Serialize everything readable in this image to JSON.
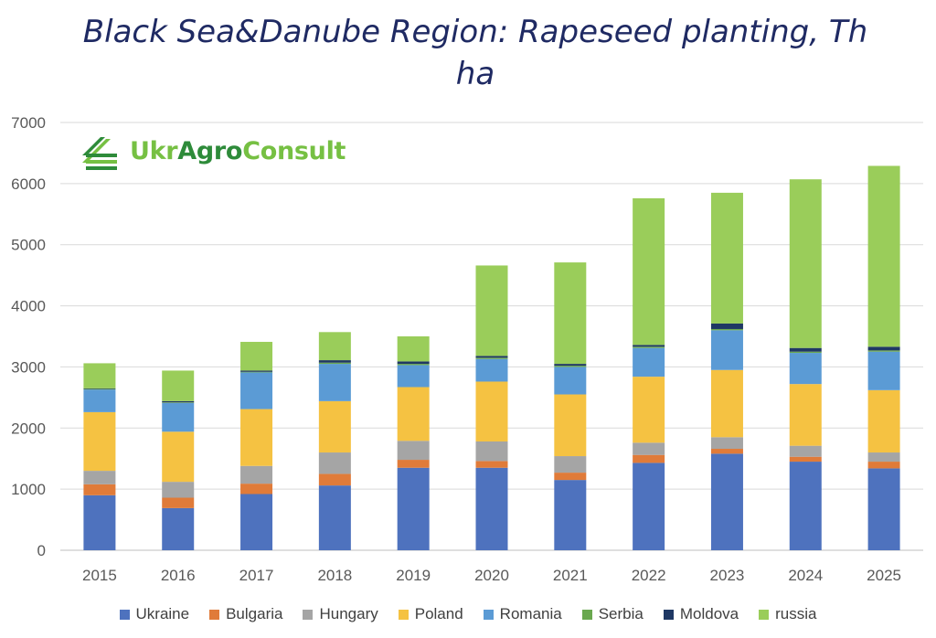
{
  "title": "Black Sea&Danube Region: Rapeseed planting, Th ha",
  "logo": {
    "part1": "Ukr",
    "part2": "Agro",
    "part3": "Consult"
  },
  "colors": {
    "Ukraine": "#4e72be",
    "Bulgaria": "#e07b39",
    "Hungary": "#a5a5a5",
    "Poland": "#f5c242",
    "Romania": "#5b9bd5",
    "Serbia": "#6aa84f",
    "Moldova": "#1f3864",
    "russia": "#9acd5a"
  },
  "chart_data": {
    "type": "bar",
    "stacked": true,
    "categories": [
      "2015",
      "2016",
      "2017",
      "2018",
      "2019",
      "2020",
      "2021",
      "2022",
      "2023",
      "2024",
      "2025"
    ],
    "ylim": [
      0,
      7000
    ],
    "yticks": [
      0,
      1000,
      2000,
      3000,
      4000,
      5000,
      6000,
      7000
    ],
    "grid": true,
    "legend_position": "bottom",
    "series": [
      {
        "name": "Ukraine",
        "values": [
          900,
          690,
          920,
          1060,
          1350,
          1350,
          1150,
          1430,
          1580,
          1450,
          1340
        ]
      },
      {
        "name": "Bulgaria",
        "values": [
          180,
          170,
          170,
          190,
          130,
          110,
          120,
          130,
          80,
          80,
          110
        ]
      },
      {
        "name": "Hungary",
        "values": [
          220,
          260,
          290,
          350,
          310,
          320,
          270,
          200,
          190,
          180,
          150
        ]
      },
      {
        "name": "Poland",
        "values": [
          960,
          820,
          930,
          840,
          880,
          980,
          1010,
          1080,
          1100,
          1010,
          1020
        ]
      },
      {
        "name": "Romania",
        "values": [
          370,
          470,
          600,
          610,
          360,
          370,
          450,
          470,
          650,
          510,
          630
        ]
      },
      {
        "name": "Serbia",
        "values": [
          10,
          10,
          10,
          20,
          20,
          20,
          20,
          20,
          20,
          20,
          20
        ]
      },
      {
        "name": "Moldova",
        "values": [
          10,
          20,
          20,
          40,
          40,
          30,
          30,
          30,
          90,
          60,
          60
        ]
      },
      {
        "name": "russia",
        "values": [
          410,
          500,
          470,
          460,
          410,
          1480,
          1660,
          2400,
          2140,
          2760,
          2960
        ]
      }
    ]
  }
}
